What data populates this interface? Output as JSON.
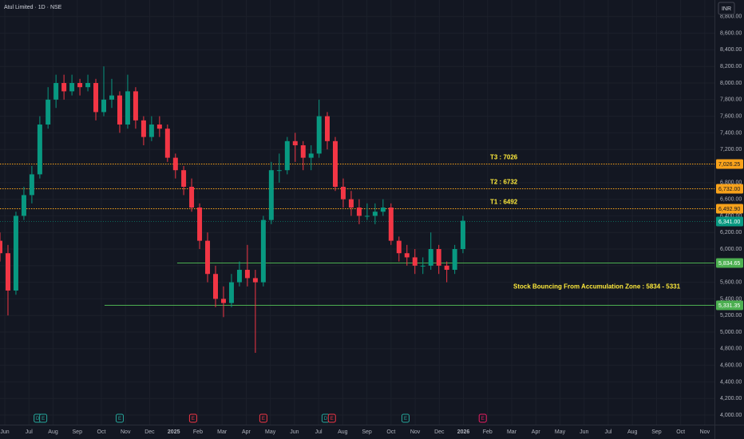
{
  "chart_data": {
    "type": "candlestick",
    "title": "Atul Limited · 1D · NSE",
    "currency": "INR",
    "up_color": "#089981",
    "down_color": "#f23645",
    "grid": true,
    "xlim": [
      -0.2,
      29.4
    ],
    "ylim": [
      3885,
      9000
    ],
    "xticks": [
      {
        "value": 0,
        "label": "Jun"
      },
      {
        "value": 1,
        "label": "Jul"
      },
      {
        "value": 2,
        "label": "Aug"
      },
      {
        "value": 3,
        "label": "Sep"
      },
      {
        "value": 4,
        "label": "Oct"
      },
      {
        "value": 5,
        "label": "Nov"
      },
      {
        "value": 6,
        "label": "Dec"
      },
      {
        "value": 7,
        "label": "2025"
      },
      {
        "value": 8,
        "label": "Feb"
      },
      {
        "value": 9,
        "label": "Mar"
      },
      {
        "value": 10,
        "label": "Apr"
      },
      {
        "value": 11,
        "label": "May"
      },
      {
        "value": 12,
        "label": "Jun"
      },
      {
        "value": 13,
        "label": "Jul"
      },
      {
        "value": 14,
        "label": "Aug"
      },
      {
        "value": 15,
        "label": "Sep"
      },
      {
        "value": 16,
        "label": "Oct"
      },
      {
        "value": 17,
        "label": "Nov"
      },
      {
        "value": 18,
        "label": "Dec"
      },
      {
        "value": 19,
        "label": "2026"
      },
      {
        "value": 20,
        "label": "Feb"
      },
      {
        "value": 21,
        "label": "Mar"
      },
      {
        "value": 22,
        "label": "Apr"
      },
      {
        "value": 23,
        "label": "May"
      },
      {
        "value": 24,
        "label": "Jun"
      },
      {
        "value": 25,
        "label": "Jul"
      },
      {
        "value": 26,
        "label": "Aug"
      },
      {
        "value": 27,
        "label": "Sep"
      },
      {
        "value": 28,
        "label": "Oct"
      },
      {
        "value": 29,
        "label": "Nov"
      }
    ],
    "yticks": [
      {
        "value": 4000,
        "label": "4,000.00"
      },
      {
        "value": 4200,
        "label": "4,200.00"
      },
      {
        "value": 4400,
        "label": "4,400.00"
      },
      {
        "value": 4600,
        "label": "4,600.00"
      },
      {
        "value": 4800,
        "label": "4,800.00"
      },
      {
        "value": 5000,
        "label": "5,000.00"
      },
      {
        "value": 5200,
        "label": "5,200.00"
      },
      {
        "value": 5400,
        "label": "5,400.00"
      },
      {
        "value": 5600,
        "label": "5,600.00"
      },
      {
        "value": 5800,
        "label": "5,800.00"
      },
      {
        "value": 6000,
        "label": "6,000.00"
      },
      {
        "value": 6200,
        "label": "6,200.00"
      },
      {
        "value": 6400,
        "label": "6,400.00"
      },
      {
        "value": 6600,
        "label": "6,600.00"
      },
      {
        "value": 6800,
        "label": "6,800.00"
      },
      {
        "value": 7000,
        "label": "7,000.00"
      },
      {
        "value": 7200,
        "label": "7,200.00"
      },
      {
        "value": 7400,
        "label": "7,400.00"
      },
      {
        "value": 7600,
        "label": "7,600.00"
      },
      {
        "value": 7800,
        "label": "7,800.00"
      },
      {
        "value": 8000,
        "label": "8,000.00"
      },
      {
        "value": 8200,
        "label": "8,200.00"
      },
      {
        "value": 8400,
        "label": "8,400.00"
      },
      {
        "value": 8600,
        "label": "8,600.00"
      },
      {
        "value": 8800,
        "label": "8,800.00"
      }
    ],
    "x": [
      -0.2,
      0.13,
      0.46,
      0.79,
      1.12,
      1.45,
      1.79,
      2.12,
      2.45,
      2.78,
      3.11,
      3.44,
      3.77,
      4.1,
      4.43,
      4.76,
      5.09,
      5.42,
      5.75,
      6.08,
      6.41,
      6.74,
      7.07,
      7.41,
      7.74,
      8.07,
      8.4,
      8.73,
      9.06,
      9.39,
      9.72,
      10.05,
      10.38,
      10.71,
      11.04,
      11.37,
      11.7,
      12.03,
      12.36,
      12.69,
      13.02,
      13.36,
      13.69,
      14.02,
      14.35,
      14.68,
      15.01,
      15.34,
      15.67,
      16.0,
      16.33,
      16.66,
      16.99,
      17.32,
      17.65,
      17.98,
      18.31,
      18.64,
      18.98
    ],
    "open": [
      6100,
      5950,
      5500,
      6400,
      6650,
      6900,
      7500,
      7800,
      8000,
      7900,
      8000,
      7950,
      8000,
      7650,
      7800,
      7850,
      7500,
      7900,
      7550,
      7350,
      7500,
      7450,
      7100,
      6950,
      6750,
      6500,
      6100,
      5700,
      5400,
      5350,
      5600,
      5750,
      5650,
      5600,
      6350,
      6950,
      6950,
      7300,
      7250,
      7100,
      7150,
      7600,
      7300,
      6750,
      6600,
      6500,
      6400,
      6400,
      6450,
      6500,
      6100,
      5950,
      5900,
      5800,
      5800,
      6000,
      5800,
      5750,
      6000
    ],
    "high": [
      6200,
      6050,
      6450,
      6750,
      7000,
      7600,
      7950,
      8100,
      8100,
      8100,
      8050,
      8100,
      8050,
      8200,
      8050,
      7900,
      8100,
      7950,
      7600,
      7600,
      7600,
      7500,
      7150,
      7000,
      6850,
      6550,
      6200,
      5800,
      5550,
      5700,
      5850,
      6050,
      5750,
      6400,
      7050,
      7150,
      7350,
      7400,
      7300,
      7250,
      7800,
      7650,
      7350,
      6850,
      6700,
      6600,
      6550,
      6550,
      6600,
      6550,
      6150,
      6050,
      6000,
      5900,
      6200,
      6050,
      5850,
      6050,
      6400
    ],
    "low": [
      5850,
      5200,
      5450,
      6350,
      6550,
      6850,
      7450,
      7700,
      7800,
      7850,
      7850,
      7900,
      7550,
      7600,
      7700,
      7400,
      7450,
      7450,
      7250,
      7300,
      7350,
      7050,
      6850,
      6650,
      6450,
      6000,
      5600,
      5300,
      5180,
      5300,
      5550,
      5550,
      4750,
      5550,
      6300,
      6800,
      6900,
      7050,
      6950,
      6950,
      7100,
      7200,
      6700,
      6500,
      6400,
      6300,
      6350,
      6300,
      6400,
      6050,
      5850,
      5800,
      5700,
      5700,
      5750,
      5700,
      5600,
      5700,
      5950
    ],
    "close": [
      5950,
      5500,
      6400,
      6650,
      6900,
      7500,
      7800,
      8000,
      7900,
      8000,
      7950,
      8000,
      7650,
      7800,
      7850,
      7500,
      7900,
      7550,
      7350,
      7500,
      7450,
      7100,
      6950,
      6750,
      6500,
      6100,
      5700,
      5400,
      5350,
      5600,
      5750,
      5650,
      5600,
      6350,
      6950,
      6950,
      7300,
      7250,
      7100,
      7150,
      7600,
      7300,
      6750,
      6600,
      6500,
      6400,
      6400,
      6450,
      6500,
      6100,
      5950,
      5900,
      5800,
      5800,
      6000,
      5800,
      5750,
      6000,
      6341
    ],
    "levels": [
      {
        "value": 7026.25,
        "label": "7,026.25",
        "color": "#f7a21b",
        "style": "dotted",
        "note": "T3 : 7026"
      },
      {
        "value": 6732,
        "label": "6,732.00",
        "color": "#f7a21b",
        "style": "dotted",
        "note": "T2 : 6732"
      },
      {
        "value": 6492.9,
        "label": "6,492.90",
        "color": "#f7a21b",
        "style": "dotted",
        "note": "T1 : 6492"
      },
      {
        "value": 6341,
        "label": "6,341.00",
        "color": "#089981",
        "style": "faint"
      },
      {
        "value": 5834.65,
        "label": "5,834.65",
        "color": "#4caf50",
        "style": "solid",
        "x_start": 7.14
      },
      {
        "value": 5331.35,
        "label": "5,331.35",
        "color": "#4caf50",
        "style": "solid",
        "x_start": 4.13
      }
    ],
    "zone_note": "Stock Bouncing From Accumulation Zone : 5834 - 5331",
    "events": [
      {
        "x": 1.36,
        "label": "D",
        "color": "#26a69a"
      },
      {
        "x": 1.59,
        "label": "E",
        "color": "#26a69a"
      },
      {
        "x": 4.76,
        "label": "E",
        "color": "#26a69a"
      },
      {
        "x": 7.8,
        "label": "E",
        "color": "#f23645"
      },
      {
        "x": 10.71,
        "label": "E",
        "color": "#f23645"
      },
      {
        "x": 13.29,
        "label": "D",
        "color": "#26a69a"
      },
      {
        "x": 13.55,
        "label": "E",
        "color": "#f23645"
      },
      {
        "x": 16.6,
        "label": "E",
        "color": "#26a69a"
      },
      {
        "x": 19.8,
        "label": "E",
        "color": "#e91e63"
      }
    ]
  }
}
